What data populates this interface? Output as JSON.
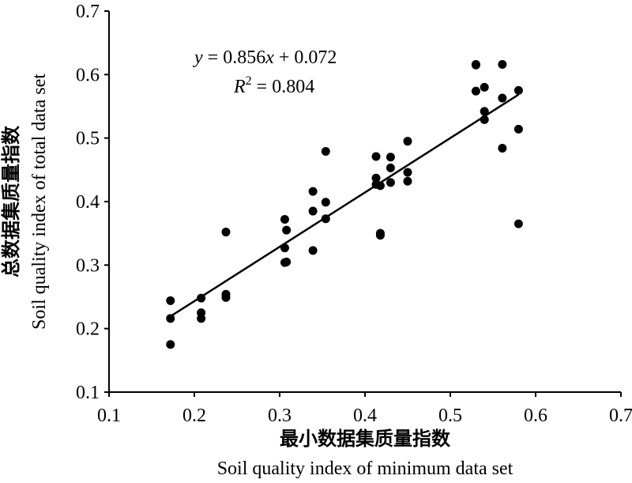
{
  "chart_data": {
    "type": "scatter",
    "xlim": [
      0.1,
      0.7
    ],
    "ylim": [
      0.1,
      0.7
    ],
    "x_ticks": [
      "0.1",
      "0.2",
      "0.3",
      "0.4",
      "0.5",
      "0.6",
      "0.7"
    ],
    "y_ticks": [
      "0.1",
      "0.2",
      "0.3",
      "0.4",
      "0.5",
      "0.6",
      "0.7"
    ],
    "xlabel_cn": "最小数据集质量指数",
    "xlabel": "Soil quality index of minimum data set",
    "ylabel_cn": "总数据集质量指数",
    "ylabel": "Soil quality index of total data set",
    "grid": false,
    "series": [
      {
        "points": [
          [
            0.172,
            0.244
          ],
          [
            0.172,
            0.216
          ],
          [
            0.172,
            0.175
          ],
          [
            0.208,
            0.248
          ],
          [
            0.208,
            0.225
          ],
          [
            0.208,
            0.216
          ],
          [
            0.237,
            0.254
          ],
          [
            0.237,
            0.249
          ],
          [
            0.237,
            0.352
          ],
          [
            0.306,
            0.372
          ],
          [
            0.306,
            0.327
          ],
          [
            0.306,
            0.304
          ],
          [
            0.308,
            0.355
          ],
          [
            0.308,
            0.305
          ],
          [
            0.339,
            0.416
          ],
          [
            0.339,
            0.385
          ],
          [
            0.339,
            0.323
          ],
          [
            0.354,
            0.479
          ],
          [
            0.354,
            0.399
          ],
          [
            0.354,
            0.373
          ],
          [
            0.413,
            0.471
          ],
          [
            0.413,
            0.437
          ],
          [
            0.413,
            0.427
          ],
          [
            0.418,
            0.425
          ],
          [
            0.418,
            0.35
          ],
          [
            0.418,
            0.347
          ],
          [
            0.43,
            0.47
          ],
          [
            0.43,
            0.453
          ],
          [
            0.43,
            0.43
          ],
          [
            0.45,
            0.495
          ],
          [
            0.45,
            0.446
          ],
          [
            0.45,
            0.432
          ],
          [
            0.53,
            0.616
          ],
          [
            0.53,
            0.615
          ],
          [
            0.53,
            0.574
          ],
          [
            0.54,
            0.58
          ],
          [
            0.54,
            0.542
          ],
          [
            0.54,
            0.529
          ],
          [
            0.561,
            0.616
          ],
          [
            0.561,
            0.563
          ],
          [
            0.561,
            0.484
          ],
          [
            0.58,
            0.575
          ],
          [
            0.58,
            0.514
          ],
          [
            0.58,
            0.365
          ]
        ]
      }
    ],
    "trendline": {
      "slope": 0.856,
      "intercept": 0.072,
      "x_range": [
        0.172,
        0.58
      ]
    },
    "annotation": {
      "eq_y": "y",
      "eq_mid": " = 0.856",
      "eq_x": "x",
      "eq_end": " + 0.072",
      "r_R": "R",
      "r_sup": "2",
      "r_val": " = 0.804"
    }
  }
}
